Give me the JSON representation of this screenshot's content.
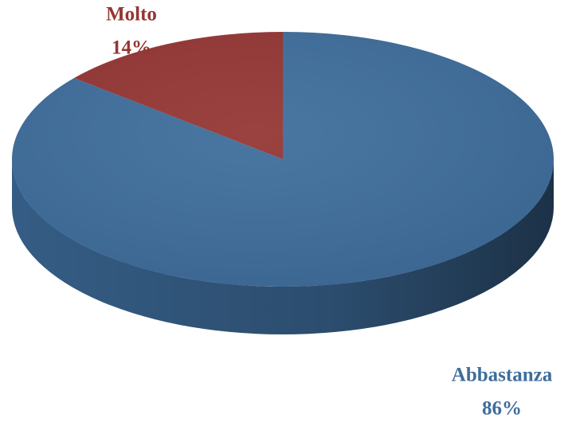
{
  "chart_data": {
    "type": "pie",
    "categories": [
      "Abbastanza",
      "Molto"
    ],
    "values": [
      86,
      14
    ],
    "value_labels": [
      "86%",
      "14%"
    ],
    "colors": [
      "#3e6d9c",
      "#943634"
    ]
  }
}
